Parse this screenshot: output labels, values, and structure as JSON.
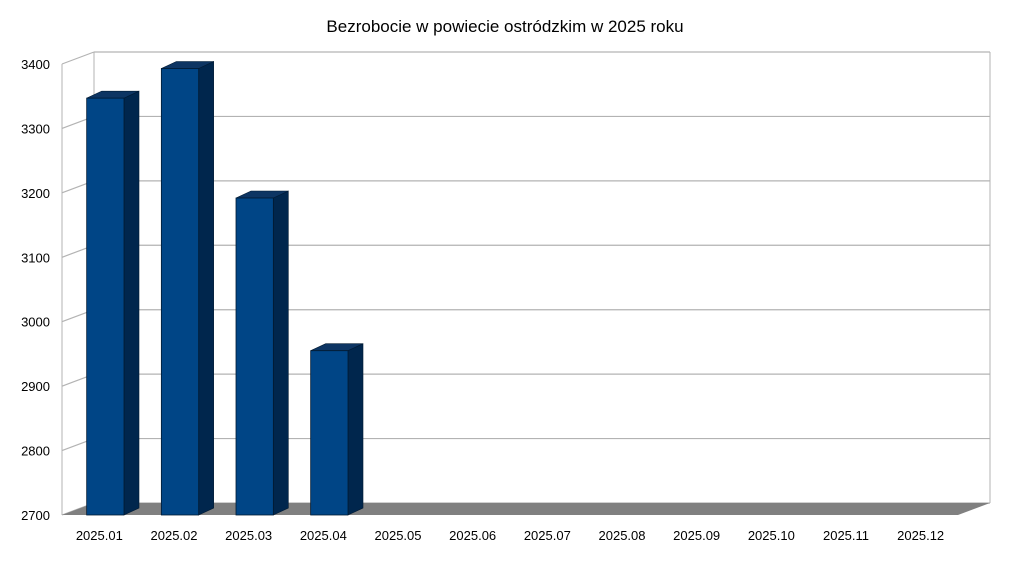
{
  "chart_data": {
    "type": "bar",
    "title": "Bezrobocie w powiecie ostródzkim w 2025 roku",
    "xlabel": "",
    "ylabel": "",
    "categories": [
      "2025.01",
      "2025.02",
      "2025.03",
      "2025.04",
      "2025.05",
      "2025.06",
      "2025.07",
      "2025.08",
      "2025.09",
      "2025.10",
      "2025.11",
      "2025.12"
    ],
    "values": [
      3347,
      3393,
      3192,
      2955,
      null,
      null,
      null,
      null,
      null,
      null,
      null,
      null
    ],
    "ylim": [
      2700,
      3400
    ],
    "yticks": [
      "2700",
      "2800",
      "2900",
      "3000",
      "3100",
      "3200",
      "3300",
      "3400"
    ],
    "grid": true,
    "style": "3d",
    "colors": {
      "bar_front": "#004586",
      "bar_side": "#00264d",
      "bar_top": "#0d3563",
      "floor": "#808080",
      "grid": "#b3b3b3"
    }
  }
}
